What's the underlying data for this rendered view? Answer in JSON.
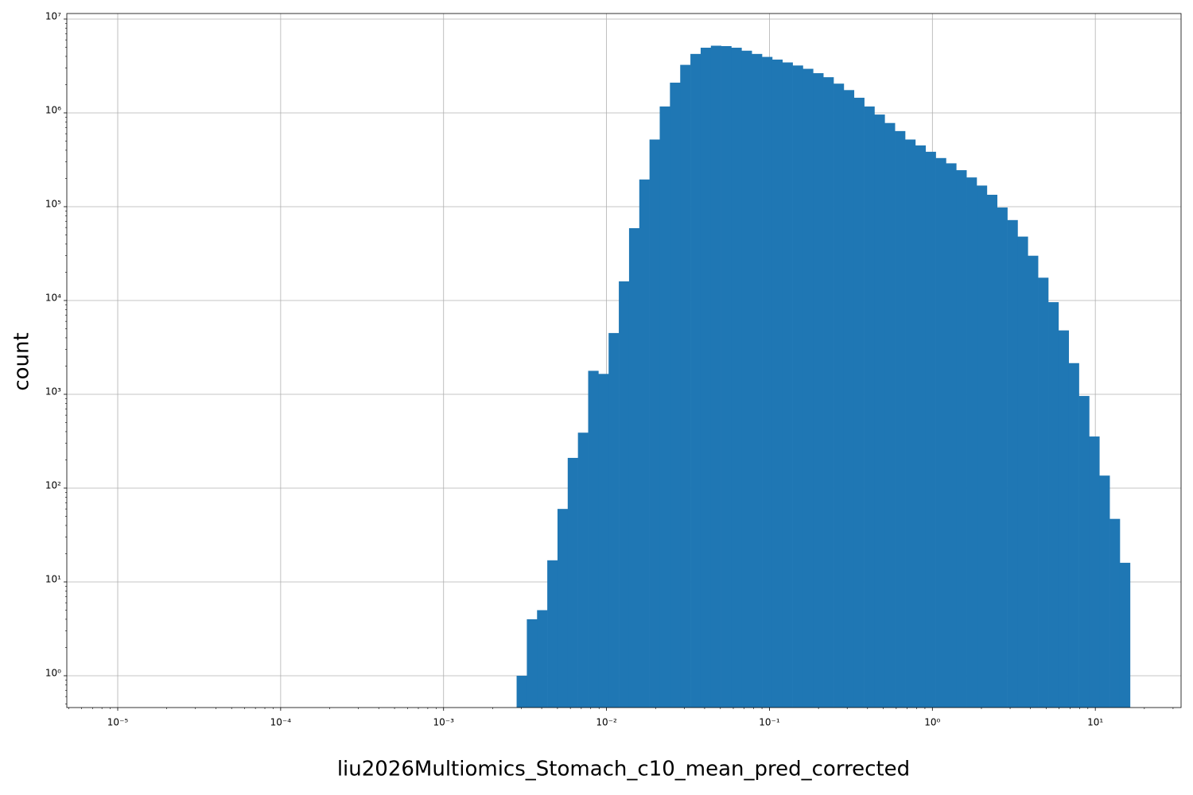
{
  "chart_data": {
    "type": "histogram",
    "x_label": "liu2026Multiomics_Stomach_c10_mean_pred_corrected",
    "y_label": "count",
    "color": "#1f77b4",
    "x_log": true,
    "y_log": true,
    "grid": true,
    "bins": [
      0.002807,
      0.003243,
      0.003747,
      0.004329,
      0.005002,
      0.005779,
      0.006677,
      0.007715,
      0.008915,
      0.0103,
      0.0119,
      0.01375,
      0.01589,
      0.01836,
      0.02121,
      0.02451,
      0.02833,
      0.03273,
      0.03782,
      0.0437,
      0.05049,
      0.05833,
      0.0674,
      0.07787,
      0.08999,
      0.104,
      0.1201,
      0.1388,
      0.1604,
      0.1853,
      0.2141,
      0.2474,
      0.2859,
      0.3303,
      0.3817,
      0.441,
      0.5095,
      0.5887,
      0.6802,
      0.7859,
      0.9081,
      1.049,
      1.212,
      1.401,
      1.619,
      1.87,
      2.161,
      2.497,
      2.885,
      3.334,
      3.852,
      4.451,
      5.143,
      5.942,
      6.866,
      7.933,
      9.167,
      10.59,
      12.24,
      14.14,
      16.34
    ],
    "counts": [
      1,
      4,
      5,
      17,
      60,
      210,
      390,
      1780,
      1650,
      4500,
      16000,
      59000,
      195000,
      520000,
      1170000,
      2100000,
      3250000,
      4250000,
      4950000,
      5200000,
      5150000,
      4950000,
      4600000,
      4250000,
      3950000,
      3700000,
      3450000,
      3200000,
      2950000,
      2650000,
      2400000,
      2050000,
      1750000,
      1450000,
      1170000,
      960000,
      780000,
      640000,
      520000,
      450000,
      385000,
      330000,
      290000,
      245000,
      205000,
      168000,
      134000,
      98000,
      72000,
      48000,
      30000,
      17500,
      9600,
      4800,
      2150,
      960,
      355,
      136,
      47,
      16
    ],
    "xlim": [
      4.87e-06,
      33.6
    ],
    "ylim": [
      0.458,
      11460000
    ],
    "xticks": [
      {
        "value": 1e-05,
        "label": "10⁻⁵"
      },
      {
        "value": 0.0001,
        "label": "10⁻⁴"
      },
      {
        "value": 0.001,
        "label": "10⁻³"
      },
      {
        "value": 0.01,
        "label": "10⁻²"
      },
      {
        "value": 0.1,
        "label": "10⁻¹"
      },
      {
        "value": 1,
        "label": "10⁰"
      },
      {
        "value": 10,
        "label": "10¹"
      }
    ],
    "yticks": [
      {
        "value": 1,
        "label": "10⁰"
      },
      {
        "value": 10,
        "label": "10¹"
      },
      {
        "value": 100,
        "label": "10²"
      },
      {
        "value": 1000,
        "label": "10³"
      },
      {
        "value": 10000,
        "label": "10⁴"
      },
      {
        "value": 100000,
        "label": "10⁵"
      },
      {
        "value": 1000000,
        "label": "10⁶"
      },
      {
        "value": 10000000,
        "label": "10⁷"
      }
    ]
  }
}
